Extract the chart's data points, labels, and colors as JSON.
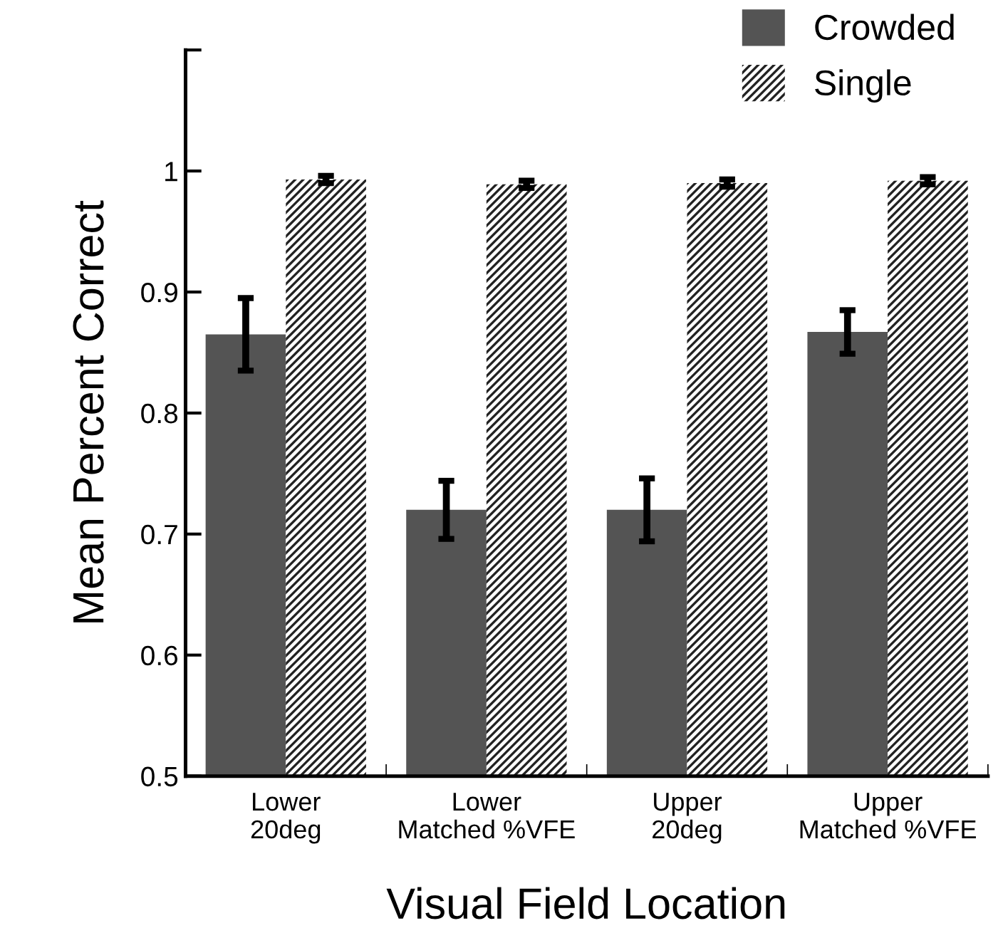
{
  "chart_data": {
    "type": "bar",
    "xlabel": "Visual Field Location",
    "ylabel": "Mean Percent Correct",
    "categories": [
      "Lower\n20deg",
      "Lower\nMatched %VFE",
      "Upper\n20deg",
      "Upper\nMatched %VFE"
    ],
    "series": [
      {
        "name": "Crowded",
        "color": "#545454",
        "values": [
          0.865,
          0.72,
          0.72,
          0.867
        ],
        "errors": [
          0.03,
          0.024,
          0.026,
          0.018
        ]
      },
      {
        "name": "Single",
        "color": "#ffffff",
        "values": [
          0.993,
          0.989,
          0.99,
          0.992
        ],
        "errors": [
          0.003,
          0.003,
          0.003,
          0.003
        ]
      }
    ],
    "ylim": [
      0.5,
      1.1
    ],
    "yticks": [
      0.5,
      0.6,
      0.7,
      0.8,
      0.9,
      1,
      {
        "value": 1.1,
        "label": null
      }
    ],
    "legend": "top right",
    "grid": false
  }
}
